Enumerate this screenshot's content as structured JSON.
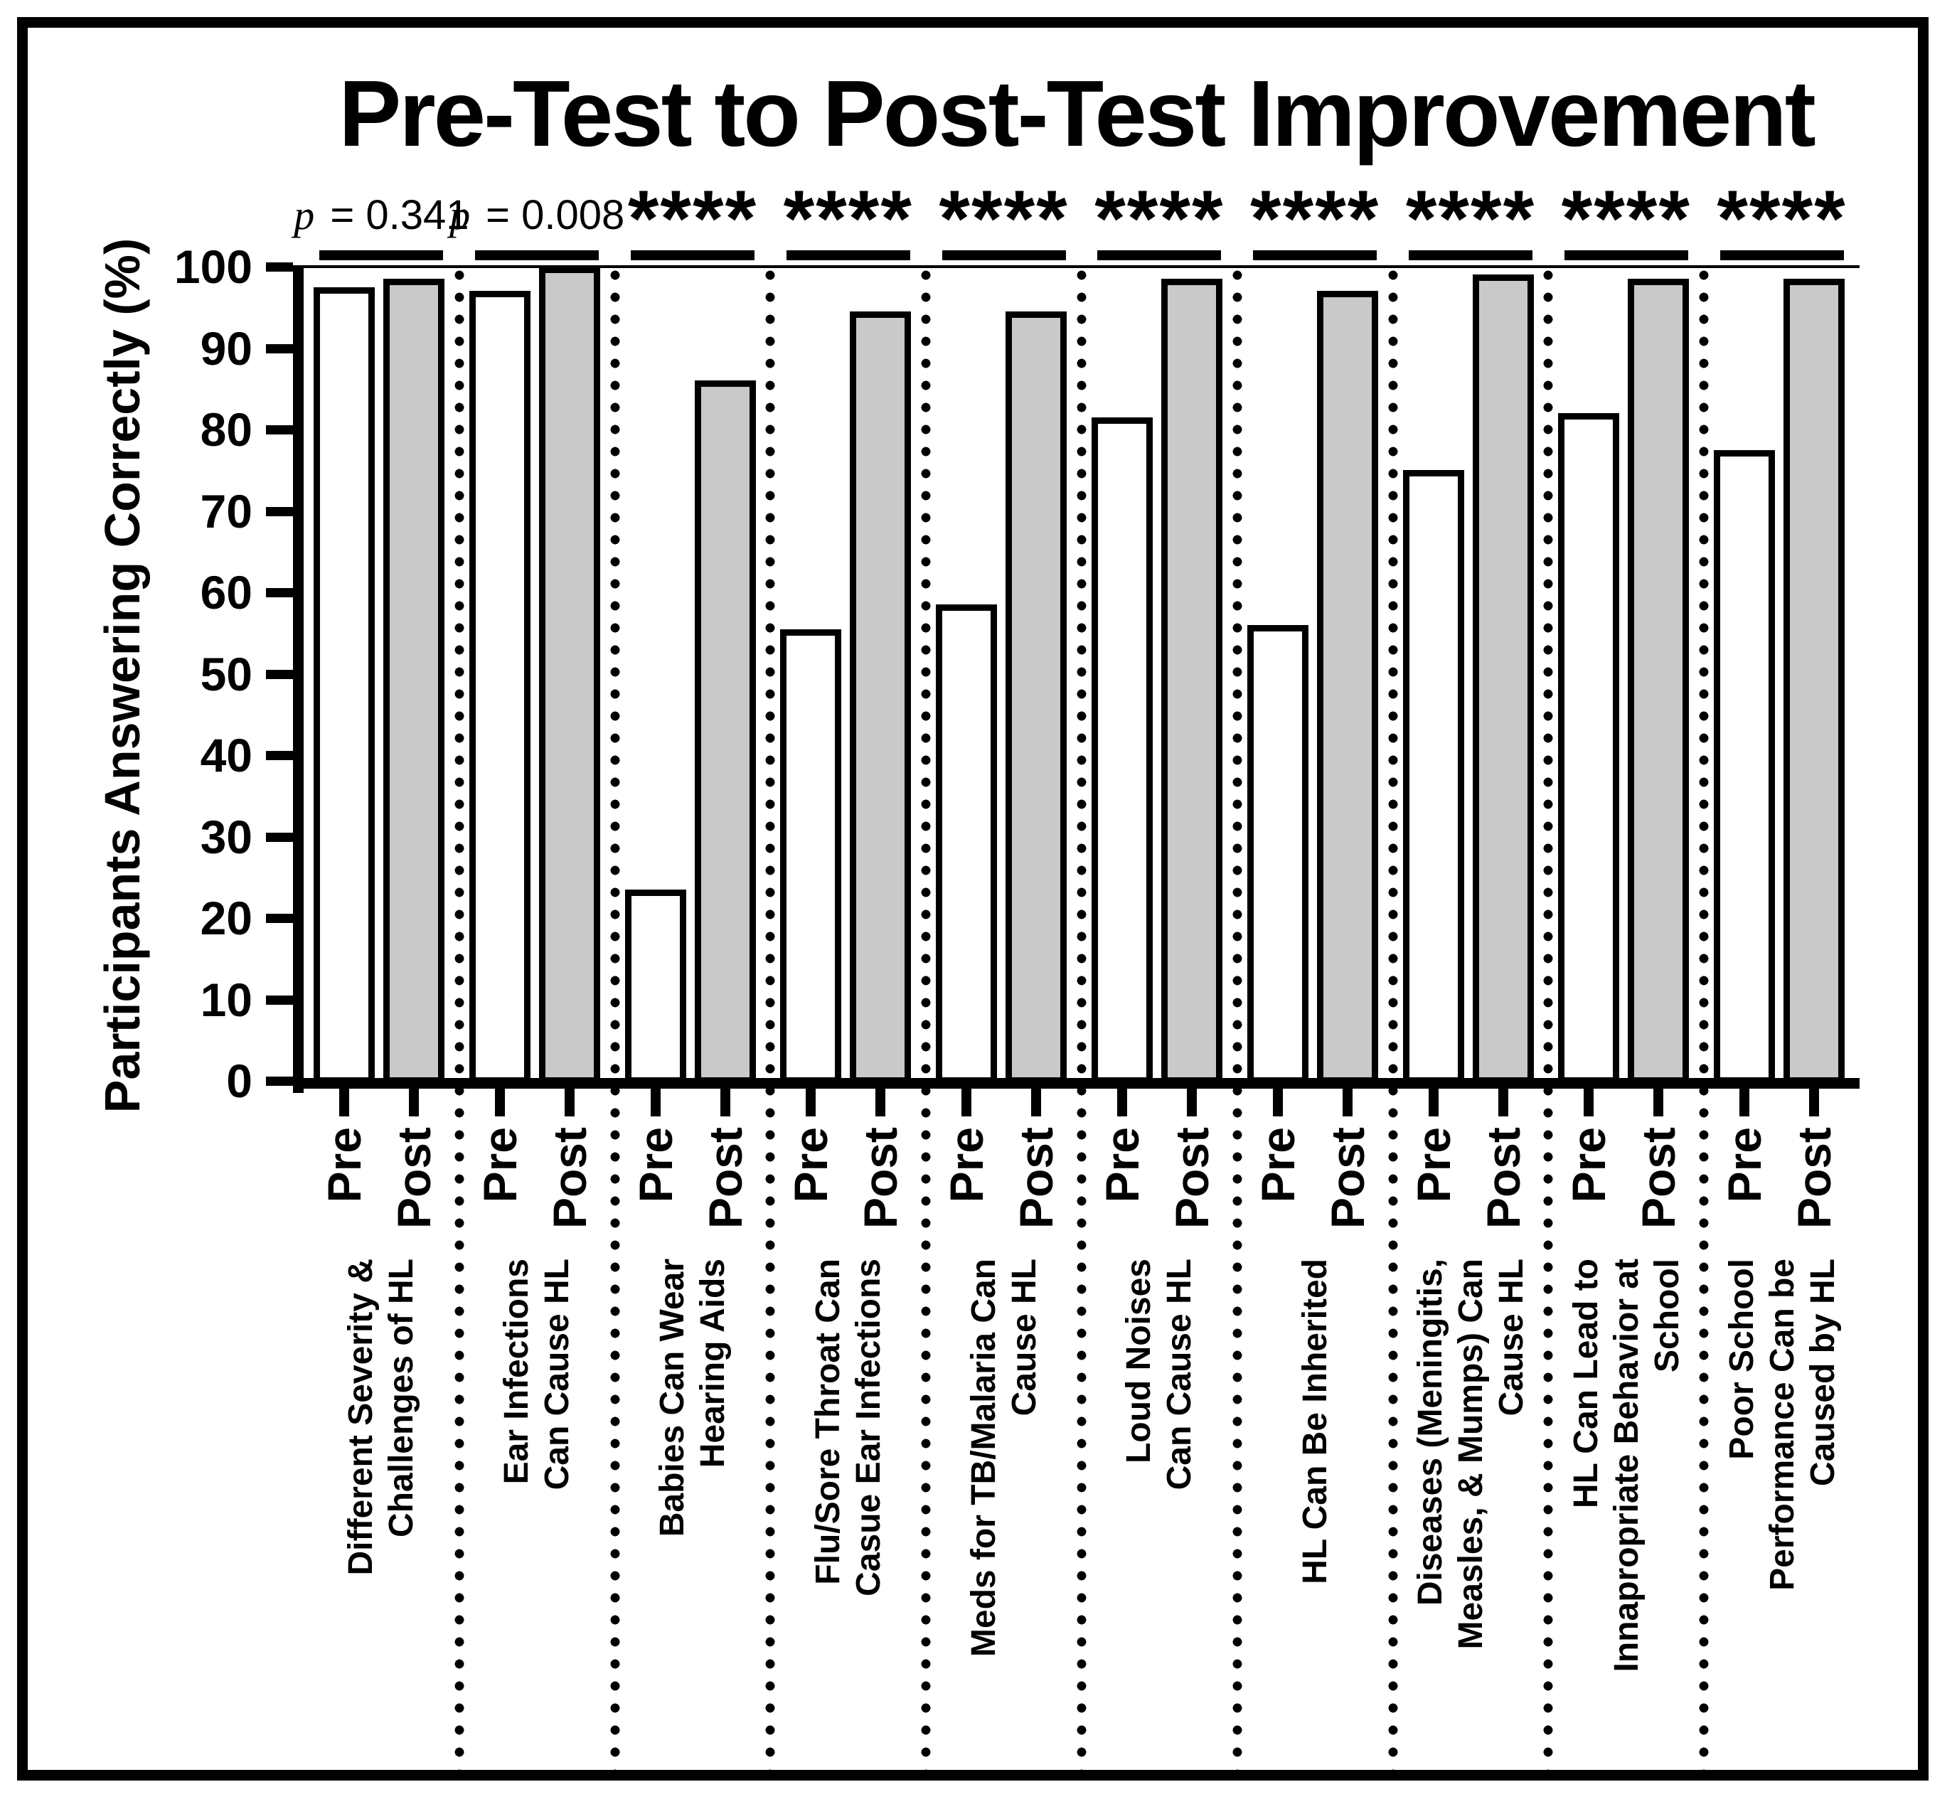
{
  "chart_data": {
    "type": "bar",
    "title": "Pre-Test to Post-Test Improvement",
    "ylabel": "Participants Answering Correctly (%)",
    "xlabel": "",
    "ylim": [
      0,
      100
    ],
    "yticks": [
      0,
      10,
      20,
      30,
      40,
      50,
      60,
      70,
      80,
      90,
      100
    ],
    "grid": false,
    "legend_position": "none",
    "bar_pair_labels": [
      "Pre",
      "Post"
    ],
    "categories": [
      "Different Severity &\nChallenges of HL",
      "Ear Infections\nCan Cause HL",
      "Babies Can Wear\nHearing Aids",
      "Flu/Sore Throat Can\nCasue Ear Infections",
      "Meds for TB/Malaria Can\nCause HL",
      "Loud Noises\nCan Cause HL",
      "HL Can Be Inherited",
      "Diseases (Meningitis,\nMeasles, & Mumps) Can\nCause HL",
      "HL Can Lead to\nInnapropriate Behavior at\nSchool",
      "Poor School\nPerformance Can be\nCaused by HL"
    ],
    "series": [
      {
        "name": "Pre",
        "values": [
          97.5,
          97,
          23.5,
          55.5,
          58.5,
          81.5,
          56,
          75,
          82,
          77.5
        ]
      },
      {
        "name": "Post",
        "values": [
          98.5,
          100,
          86,
          94.5,
          94.5,
          98.5,
          97,
          99,
          98.5,
          98.5
        ]
      }
    ],
    "significance_labels": [
      "p = 0.341",
      "p = 0.008",
      "****",
      "****",
      "****",
      "****",
      "****",
      "****",
      "****",
      "****"
    ],
    "colors": {
      "pre_fill": "#ffffff",
      "post_fill": "#c9c9c9",
      "bar_border": "#000000",
      "axis": "#000000",
      "background": "#ffffff"
    }
  }
}
